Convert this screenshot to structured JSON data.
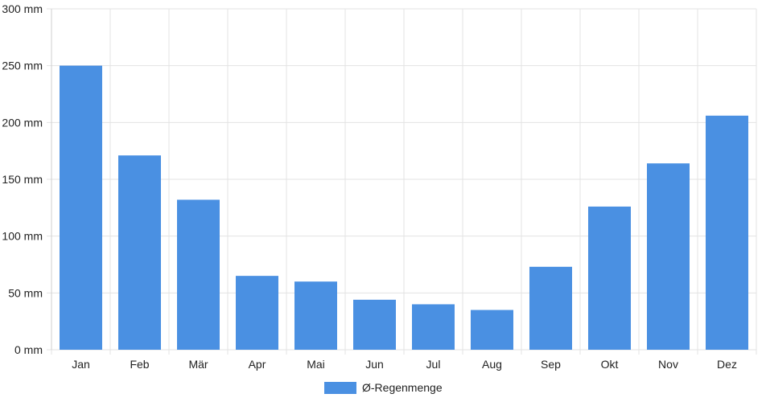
{
  "chart_data": {
    "type": "bar",
    "categories": [
      "Jan",
      "Feb",
      "Mär",
      "Apr",
      "Mai",
      "Jun",
      "Jul",
      "Aug",
      "Sep",
      "Okt",
      "Nov",
      "Dez"
    ],
    "series": [
      {
        "name": "Ø-Regenmenge",
        "values": [
          250,
          171,
          132,
          65,
          60,
          44,
          40,
          35,
          73,
          126,
          164,
          206
        ],
        "color": "#4a90e2"
      }
    ],
    "yticks": [
      "0 mm",
      "50 mm",
      "100 mm",
      "150 mm",
      "200 mm",
      "250 mm",
      "300 mm"
    ],
    "ylim": [
      0,
      300
    ],
    "grid": true,
    "legend_position": "bottom-center",
    "title": "",
    "xlabel": "",
    "ylabel": ""
  }
}
